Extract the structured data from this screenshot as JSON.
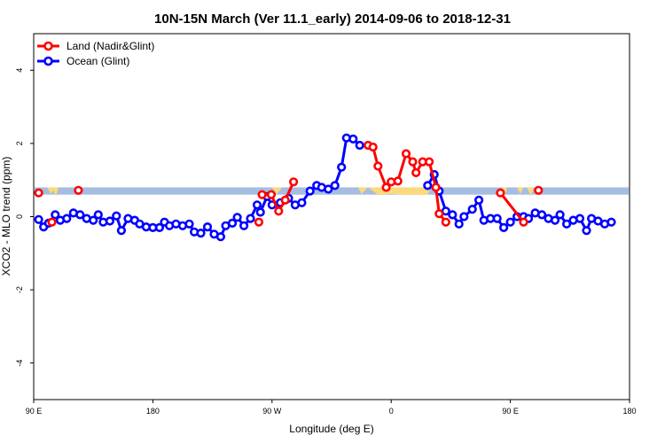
{
  "chart_data": {
    "type": "line",
    "title": "10N-15N March (Ver 11.1_early)   2014-09-06 to 2018-12-31",
    "xlabel": "Longitude (deg E)",
    "ylabel": "XCO2 - MLO trend (ppm)",
    "xlim": [
      90,
      450
    ],
    "ylim": [
      -5,
      5
    ],
    "x_ticks": [
      {
        "value": 90,
        "label": "90 E"
      },
      {
        "value": 162,
        "label": "180"
      },
      {
        "value": 234,
        "label": "90 W"
      },
      {
        "value": 306,
        "label": "0"
      },
      {
        "value": 378,
        "label": "90 E"
      },
      {
        "value": 450,
        "label": "180"
      }
    ],
    "y_ticks": [
      -4,
      -2,
      0,
      2,
      4
    ],
    "grid": false,
    "legend": {
      "position": "top-left"
    },
    "band": {
      "ymin": 0.6,
      "ymax": 0.8,
      "color": "#a6bde2"
    },
    "yellow_fill_color": "#fcd97a",
    "yellow_segments": [
      [
        [
          98,
          0.8
        ],
        [
          100.5,
          0.62
        ],
        [
          103,
          0.8
        ]
      ],
      [
        [
          101,
          0.8
        ],
        [
          103.5,
          0.55
        ],
        [
          105,
          0.8
        ]
      ],
      [
        [
          234,
          0.8
        ],
        [
          237,
          0.62
        ],
        [
          240,
          0.8
        ]
      ],
      [
        [
          286,
          0.8
        ],
        [
          288,
          0.62
        ],
        [
          292,
          0.8
        ],
        [
          298,
          0.6
        ],
        [
          306,
          0.62
        ],
        [
          312,
          0.6
        ],
        [
          322,
          0.6
        ],
        [
          328,
          0.6
        ],
        [
          330,
          0.8
        ]
      ],
      [
        [
          373,
          0.8
        ],
        [
          374.5,
          0.55
        ],
        [
          376,
          0.8
        ]
      ],
      [
        [
          382,
          0.8
        ],
        [
          384,
          0.62
        ],
        [
          386,
          0.8
        ]
      ],
      [
        [
          388,
          0.8
        ],
        [
          390.5,
          0.55
        ],
        [
          392,
          0.8
        ]
      ]
    ],
    "series": [
      {
        "name": "Land (Nadir&Glint)",
        "color": "#ff0000",
        "segments": [
          [
            [
              93,
              0.65
            ]
          ],
          [
            [
              101,
              -0.15
            ]
          ],
          [
            [
              117,
              0.72
            ]
          ],
          [
            [
              226,
              -0.15
            ]
          ],
          [
            [
              228,
              0.6
            ],
            [
              233.5,
              0.6
            ],
            [
              238,
              0.15
            ],
            [
              242,
              0.45
            ],
            [
              247,
              0.95
            ]
          ],
          [
            [
              292,
              1.95
            ],
            [
              295,
              1.9
            ],
            [
              298,
              1.38
            ],
            [
              303,
              0.8
            ],
            [
              306,
              0.95
            ],
            [
              310,
              0.97
            ],
            [
              315,
              1.72
            ],
            [
              319,
              1.5
            ],
            [
              321,
              1.2
            ],
            [
              325,
              1.5
            ],
            [
              329,
              1.5
            ],
            [
              333,
              0.8
            ],
            [
              335,
              0.08
            ],
            [
              339,
              -0.15
            ]
          ],
          [
            [
              372,
              0.65
            ],
            [
              386,
              -0.15
            ]
          ],
          [
            [
              395,
              0.72
            ]
          ]
        ]
      },
      {
        "name": "Ocean (Glint)",
        "color": "#0000ff",
        "segments": [
          [
            [
              93,
              -0.08
            ],
            [
              96,
              -0.28
            ],
            [
              99,
              -0.18
            ],
            [
              103,
              0.05
            ],
            [
              106,
              -0.1
            ],
            [
              110,
              -0.05
            ],
            [
              114,
              0.1
            ],
            [
              118,
              0.05
            ],
            [
              122,
              -0.05
            ],
            [
              126,
              -0.1
            ],
            [
              129,
              0.05
            ],
            [
              132,
              -0.15
            ],
            [
              136,
              -0.12
            ],
            [
              140,
              0.02
            ],
            [
              143,
              -0.38
            ],
            [
              147,
              -0.05
            ],
            [
              151,
              -0.1
            ],
            [
              154,
              -0.2
            ],
            [
              158,
              -0.28
            ],
            [
              162,
              -0.3
            ],
            [
              166,
              -0.3
            ],
            [
              169,
              -0.15
            ],
            [
              172,
              -0.25
            ],
            [
              176,
              -0.2
            ],
            [
              180,
              -0.25
            ],
            [
              184,
              -0.2
            ],
            [
              187,
              -0.42
            ],
            [
              191,
              -0.45
            ],
            [
              195,
              -0.28
            ],
            [
              199,
              -0.48
            ],
            [
              203,
              -0.55
            ],
            [
              206,
              -0.25
            ],
            [
              210,
              -0.18
            ],
            [
              213,
              -0.02
            ],
            [
              217,
              -0.25
            ],
            [
              221,
              -0.05
            ],
            [
              225,
              0.32
            ],
            [
              227,
              0.12
            ],
            [
              231,
              0.55
            ],
            [
              234,
              0.32
            ],
            [
              239,
              0.38
            ],
            [
              244,
              0.5
            ],
            [
              248,
              0.32
            ],
            [
              252,
              0.38
            ],
            [
              257,
              0.7
            ],
            [
              261,
              0.85
            ],
            [
              264,
              0.8
            ],
            [
              268,
              0.75
            ],
            [
              272,
              0.85
            ],
            [
              276,
              1.35
            ],
            [
              279,
              2.15
            ],
            [
              283,
              2.12
            ],
            [
              287,
              1.95
            ]
          ],
          [
            [
              328,
              0.85
            ],
            [
              332,
              1.15
            ],
            [
              335,
              0.7
            ],
            [
              339,
              0.15
            ],
            [
              343,
              0.05
            ],
            [
              347,
              -0.2
            ],
            [
              350,
              0
            ],
            [
              355,
              0.2
            ],
            [
              359,
              0.45
            ],
            [
              362,
              -0.1
            ],
            [
              366,
              -0.05
            ],
            [
              370,
              -0.05
            ],
            [
              374,
              -0.3
            ],
            [
              378,
              -0.15
            ],
            [
              382,
              0
            ],
            [
              386,
              0
            ],
            [
              389,
              -0.05
            ],
            [
              393,
              0.1
            ],
            [
              397,
              0.05
            ],
            [
              401,
              -0.05
            ],
            [
              405,
              -0.1
            ],
            [
              408,
              0.05
            ],
            [
              412,
              -0.2
            ],
            [
              416,
              -0.1
            ],
            [
              420,
              -0.05
            ],
            [
              424,
              -0.38
            ],
            [
              427,
              -0.05
            ],
            [
              431,
              -0.12
            ],
            [
              435,
              -0.2
            ],
            [
              439,
              -0.15
            ]
          ]
        ]
      }
    ]
  }
}
